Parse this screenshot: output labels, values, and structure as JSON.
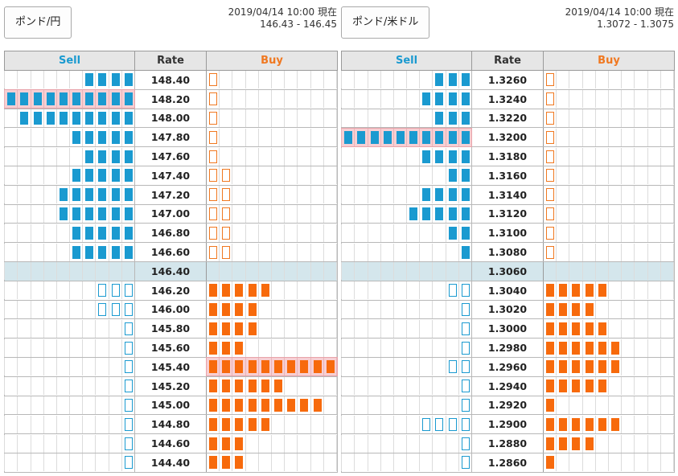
{
  "colors": {
    "sell": "#1a9ad0",
    "buy": "#f76a0c",
    "highlight": "#f7cfd3",
    "current_row": "#d4e6ec"
  },
  "panels": [
    {
      "pair_label": "ポンド/円",
      "timestamp": "2019/04/14 10:00 現在",
      "quote": "146.43 - 146.45",
      "headers": {
        "sell": "Sell",
        "rate": "Rate",
        "buy": "Buy"
      },
      "rows": [
        {
          "rate": "148.40",
          "sell": 4,
          "sell_style": "fill",
          "buy": 1,
          "buy_style": "outline",
          "hl": ""
        },
        {
          "rate": "148.20",
          "sell": 10,
          "sell_style": "fill",
          "buy": 1,
          "buy_style": "outline",
          "hl": "sell"
        },
        {
          "rate": "148.00",
          "sell": 9,
          "sell_style": "fill",
          "buy": 1,
          "buy_style": "outline",
          "hl": ""
        },
        {
          "rate": "147.80",
          "sell": 5,
          "sell_style": "fill",
          "buy": 1,
          "buy_style": "outline",
          "hl": ""
        },
        {
          "rate": "147.60",
          "sell": 4,
          "sell_style": "fill",
          "buy": 1,
          "buy_style": "outline",
          "hl": ""
        },
        {
          "rate": "147.40",
          "sell": 5,
          "sell_style": "fill",
          "buy": 2,
          "buy_style": "outline",
          "hl": ""
        },
        {
          "rate": "147.20",
          "sell": 6,
          "sell_style": "fill",
          "buy": 2,
          "buy_style": "outline",
          "hl": ""
        },
        {
          "rate": "147.00",
          "sell": 6,
          "sell_style": "fill",
          "buy": 2,
          "buy_style": "outline",
          "hl": ""
        },
        {
          "rate": "146.80",
          "sell": 5,
          "sell_style": "fill",
          "buy": 2,
          "buy_style": "outline",
          "hl": ""
        },
        {
          "rate": "146.60",
          "sell": 5,
          "sell_style": "fill",
          "buy": 2,
          "buy_style": "outline",
          "hl": ""
        },
        {
          "rate": "146.40",
          "sell": 0,
          "sell_style": "fill",
          "buy": 0,
          "buy_style": "fill",
          "hl": "",
          "current": true
        },
        {
          "rate": "146.20",
          "sell": 3,
          "sell_style": "outline",
          "buy": 5,
          "buy_style": "fill",
          "hl": ""
        },
        {
          "rate": "146.00",
          "sell": 3,
          "sell_style": "outline",
          "buy": 4,
          "buy_style": "fill",
          "hl": ""
        },
        {
          "rate": "145.80",
          "sell": 1,
          "sell_style": "outline",
          "buy": 4,
          "buy_style": "fill",
          "hl": ""
        },
        {
          "rate": "145.60",
          "sell": 1,
          "sell_style": "outline",
          "buy": 3,
          "buy_style": "fill",
          "hl": ""
        },
        {
          "rate": "145.40",
          "sell": 1,
          "sell_style": "outline",
          "buy": 10,
          "buy_style": "fill",
          "hl": "buy"
        },
        {
          "rate": "145.20",
          "sell": 1,
          "sell_style": "outline",
          "buy": 6,
          "buy_style": "fill",
          "hl": ""
        },
        {
          "rate": "145.00",
          "sell": 1,
          "sell_style": "outline",
          "buy": 9,
          "buy_style": "fill",
          "hl": ""
        },
        {
          "rate": "144.80",
          "sell": 1,
          "sell_style": "outline",
          "buy": 5,
          "buy_style": "fill",
          "hl": ""
        },
        {
          "rate": "144.60",
          "sell": 1,
          "sell_style": "outline",
          "buy": 3,
          "buy_style": "fill",
          "hl": ""
        },
        {
          "rate": "144.40",
          "sell": 1,
          "sell_style": "outline",
          "buy": 3,
          "buy_style": "fill",
          "hl": ""
        }
      ]
    },
    {
      "pair_label": "ポンド/米ドル",
      "timestamp": "2019/04/14 10:00 現在",
      "quote": "1.3072 - 1.3075",
      "headers": {
        "sell": "Sell",
        "rate": "Rate",
        "buy": "Buy"
      },
      "rows": [
        {
          "rate": "1.3260",
          "sell": 3,
          "sell_style": "fill",
          "buy": 1,
          "buy_style": "outline",
          "hl": ""
        },
        {
          "rate": "1.3240",
          "sell": 4,
          "sell_style": "fill",
          "buy": 1,
          "buy_style": "outline",
          "hl": ""
        },
        {
          "rate": "1.3220",
          "sell": 3,
          "sell_style": "fill",
          "buy": 1,
          "buy_style": "outline",
          "hl": ""
        },
        {
          "rate": "1.3200",
          "sell": 10,
          "sell_style": "fill",
          "buy": 1,
          "buy_style": "outline",
          "hl": "sell"
        },
        {
          "rate": "1.3180",
          "sell": 4,
          "sell_style": "fill",
          "buy": 1,
          "buy_style": "outline",
          "hl": ""
        },
        {
          "rate": "1.3160",
          "sell": 2,
          "sell_style": "fill",
          "buy": 1,
          "buy_style": "outline",
          "hl": ""
        },
        {
          "rate": "1.3140",
          "sell": 4,
          "sell_style": "fill",
          "buy": 1,
          "buy_style": "outline",
          "hl": ""
        },
        {
          "rate": "1.3120",
          "sell": 5,
          "sell_style": "fill",
          "buy": 1,
          "buy_style": "outline",
          "hl": ""
        },
        {
          "rate": "1.3100",
          "sell": 2,
          "sell_style": "fill",
          "buy": 1,
          "buy_style": "outline",
          "hl": ""
        },
        {
          "rate": "1.3080",
          "sell": 1,
          "sell_style": "fill",
          "buy": 1,
          "buy_style": "outline",
          "hl": ""
        },
        {
          "rate": "1.3060",
          "sell": 0,
          "sell_style": "fill",
          "buy": 0,
          "buy_style": "fill",
          "hl": "",
          "current": true
        },
        {
          "rate": "1.3040",
          "sell": 2,
          "sell_style": "outline",
          "buy": 5,
          "buy_style": "fill",
          "hl": ""
        },
        {
          "rate": "1.3020",
          "sell": 1,
          "sell_style": "outline",
          "buy": 4,
          "buy_style": "fill",
          "hl": ""
        },
        {
          "rate": "1.3000",
          "sell": 1,
          "sell_style": "outline",
          "buy": 5,
          "buy_style": "fill",
          "hl": ""
        },
        {
          "rate": "1.2980",
          "sell": 1,
          "sell_style": "outline",
          "buy": 6,
          "buy_style": "fill",
          "hl": ""
        },
        {
          "rate": "1.2960",
          "sell": 2,
          "sell_style": "outline",
          "buy": 6,
          "buy_style": "fill",
          "hl": ""
        },
        {
          "rate": "1.2940",
          "sell": 1,
          "sell_style": "outline",
          "buy": 5,
          "buy_style": "fill",
          "hl": ""
        },
        {
          "rate": "1.2920",
          "sell": 1,
          "sell_style": "outline",
          "buy": 1,
          "buy_style": "fill",
          "hl": ""
        },
        {
          "rate": "1.2900",
          "sell": 4,
          "sell_style": "outline",
          "buy": 6,
          "buy_style": "fill",
          "hl": ""
        },
        {
          "rate": "1.2880",
          "sell": 1,
          "sell_style": "outline",
          "buy": 4,
          "buy_style": "fill",
          "hl": ""
        },
        {
          "rate": "1.2860",
          "sell": 1,
          "sell_style": "outline",
          "buy": 1,
          "buy_style": "fill",
          "hl": ""
        }
      ]
    }
  ]
}
